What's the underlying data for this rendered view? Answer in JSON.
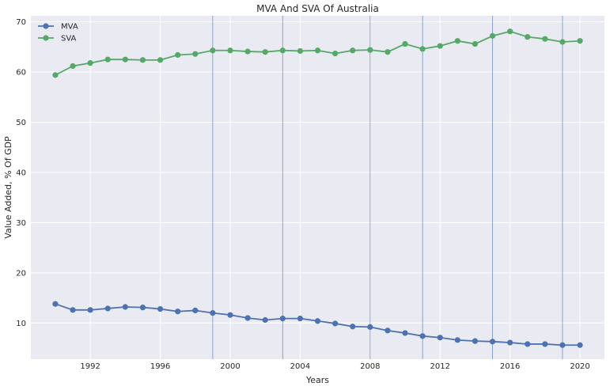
{
  "chart_data": {
    "type": "line",
    "title": "MVA And SVA Of Australia",
    "xlabel": "Years",
    "ylabel": "Value Added, % Of GDP",
    "xlim": [
      1988.6,
      2021.4
    ],
    "ylim": [
      2.8,
      71.2
    ],
    "x_ticks": [
      1992,
      1996,
      2000,
      2004,
      2008,
      2012,
      2016,
      2020
    ],
    "y_ticks": [
      10,
      20,
      30,
      40,
      50,
      60,
      70
    ],
    "grid": true,
    "legend_position": "top-left",
    "vertical_markers": [
      1999,
      2003,
      2008,
      2011,
      2015,
      2019
    ],
    "x": [
      1990,
      1991,
      1992,
      1993,
      1994,
      1995,
      1996,
      1997,
      1998,
      1999,
      2000,
      2001,
      2002,
      2003,
      2004,
      2005,
      2006,
      2007,
      2008,
      2009,
      2010,
      2011,
      2012,
      2013,
      2014,
      2015,
      2016,
      2017,
      2018,
      2019,
      2020
    ],
    "series": [
      {
        "name": "MVA",
        "color": "#4c72b0",
        "values": [
          13.8,
          12.6,
          12.6,
          12.9,
          13.2,
          13.1,
          12.8,
          12.3,
          12.5,
          12.0,
          11.6,
          11.0,
          10.6,
          10.9,
          10.9,
          10.4,
          9.9,
          9.3,
          9.2,
          8.5,
          8.0,
          7.4,
          7.1,
          6.6,
          6.4,
          6.3,
          6.1,
          5.8,
          5.8,
          5.6,
          5.6
        ]
      },
      {
        "name": "SVA",
        "color": "#55a868",
        "values": [
          59.4,
          61.2,
          61.8,
          62.5,
          62.5,
          62.4,
          62.4,
          63.4,
          63.6,
          64.3,
          64.3,
          64.1,
          64.0,
          64.3,
          64.2,
          64.3,
          63.7,
          64.3,
          64.4,
          64.0,
          65.6,
          64.6,
          65.2,
          66.2,
          65.6,
          67.2,
          68.1,
          67.0,
          66.6,
          66.0,
          66.2
        ]
      }
    ]
  }
}
